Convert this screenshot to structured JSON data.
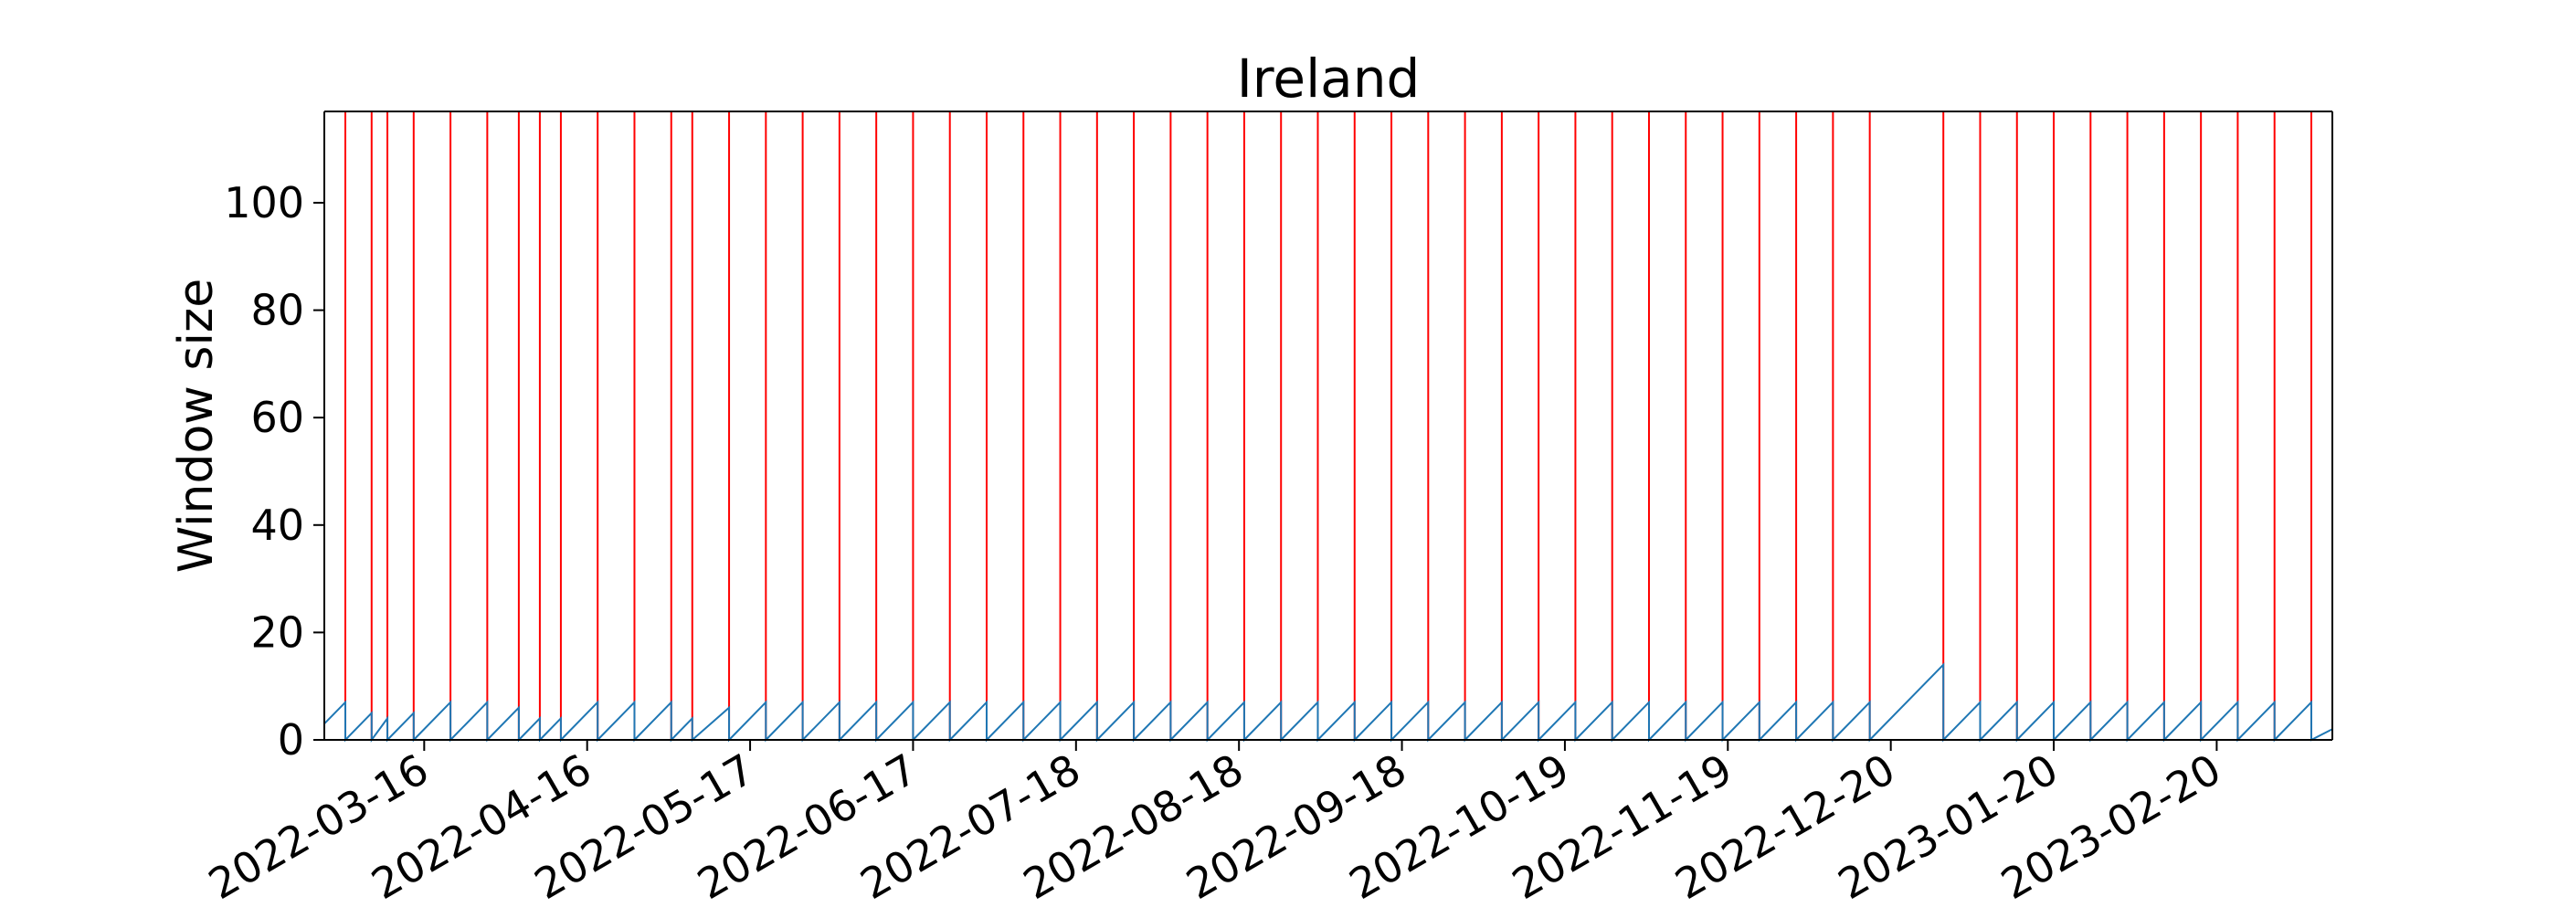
{
  "chart_data": {
    "type": "line",
    "title": "Ireland",
    "xlabel": "",
    "ylabel": "Window size",
    "x_axis_kind": "date",
    "xlim": [
      "2022-02-25",
      "2023-03-14"
    ],
    "ylim": [
      0,
      117
    ],
    "yticks": [
      0,
      20,
      40,
      60,
      80,
      100
    ],
    "xticks": [
      "2022-03-16",
      "2022-04-16",
      "2022-05-17",
      "2022-06-17",
      "2022-07-18",
      "2022-08-18",
      "2022-09-18",
      "2022-10-19",
      "2022-11-19",
      "2022-12-20",
      "2023-01-20",
      "2023-02-20"
    ],
    "grid": false,
    "legend": "none",
    "series": [
      {
        "color": "#1f77b4",
        "points": [
          [
            "2022-02-25",
            3
          ],
          [
            "2022-03-01",
            7
          ],
          [
            "2022-03-01",
            0
          ],
          [
            "2022-03-06",
            5
          ],
          [
            "2022-03-06",
            0
          ],
          [
            "2022-03-09",
            4
          ],
          [
            "2022-03-09",
            0
          ],
          [
            "2022-03-14",
            5
          ],
          [
            "2022-03-14",
            0
          ],
          [
            "2022-03-21",
            7
          ],
          [
            "2022-03-21",
            0
          ],
          [
            "2022-03-28",
            7
          ],
          [
            "2022-03-28",
            0
          ],
          [
            "2022-04-03",
            6
          ],
          [
            "2022-04-03",
            0
          ],
          [
            "2022-04-07",
            4
          ],
          [
            "2022-04-07",
            0
          ],
          [
            "2022-04-11",
            4
          ],
          [
            "2022-04-11",
            0
          ],
          [
            "2022-04-18",
            7
          ],
          [
            "2022-04-18",
            0
          ],
          [
            "2022-04-25",
            7
          ],
          [
            "2022-04-25",
            0
          ],
          [
            "2022-05-02",
            7
          ],
          [
            "2022-05-02",
            0
          ],
          [
            "2022-05-06",
            4
          ],
          [
            "2022-05-06",
            0
          ],
          [
            "2022-05-13",
            6
          ],
          [
            "2022-05-13",
            0
          ],
          [
            "2022-05-20",
            7
          ],
          [
            "2022-05-20",
            0
          ],
          [
            "2022-05-27",
            7
          ],
          [
            "2022-05-27",
            0
          ],
          [
            "2022-06-03",
            7
          ],
          [
            "2022-06-03",
            0
          ],
          [
            "2022-06-10",
            7
          ],
          [
            "2022-06-10",
            0
          ],
          [
            "2022-06-17",
            7
          ],
          [
            "2022-06-17",
            0
          ],
          [
            "2022-06-24",
            7
          ],
          [
            "2022-06-24",
            0
          ],
          [
            "2022-07-01",
            7
          ],
          [
            "2022-07-01",
            0
          ],
          [
            "2022-07-08",
            7
          ],
          [
            "2022-07-08",
            0
          ],
          [
            "2022-07-15",
            7
          ],
          [
            "2022-07-15",
            0
          ],
          [
            "2022-07-22",
            7
          ],
          [
            "2022-07-22",
            0
          ],
          [
            "2022-07-29",
            7
          ],
          [
            "2022-07-29",
            0
          ],
          [
            "2022-08-05",
            7
          ],
          [
            "2022-08-05",
            0
          ],
          [
            "2022-08-12",
            7
          ],
          [
            "2022-08-12",
            0
          ],
          [
            "2022-08-19",
            7
          ],
          [
            "2022-08-19",
            0
          ],
          [
            "2022-08-26",
            7
          ],
          [
            "2022-08-26",
            0
          ],
          [
            "2022-09-02",
            7
          ],
          [
            "2022-09-02",
            0
          ],
          [
            "2022-09-09",
            7
          ],
          [
            "2022-09-09",
            0
          ],
          [
            "2022-09-16",
            7
          ],
          [
            "2022-09-16",
            0
          ],
          [
            "2022-09-23",
            7
          ],
          [
            "2022-09-23",
            0
          ],
          [
            "2022-09-30",
            7
          ],
          [
            "2022-09-30",
            0
          ],
          [
            "2022-10-07",
            7
          ],
          [
            "2022-10-07",
            0
          ],
          [
            "2022-10-14",
            7
          ],
          [
            "2022-10-14",
            0
          ],
          [
            "2022-10-21",
            7
          ],
          [
            "2022-10-21",
            0
          ],
          [
            "2022-10-28",
            7
          ],
          [
            "2022-10-28",
            0
          ],
          [
            "2022-11-04",
            7
          ],
          [
            "2022-11-04",
            0
          ],
          [
            "2022-11-11",
            7
          ],
          [
            "2022-11-11",
            0
          ],
          [
            "2022-11-18",
            7
          ],
          [
            "2022-11-18",
            0
          ],
          [
            "2022-11-25",
            7
          ],
          [
            "2022-11-25",
            0
          ],
          [
            "2022-12-02",
            7
          ],
          [
            "2022-12-02",
            0
          ],
          [
            "2022-12-09",
            7
          ],
          [
            "2022-12-09",
            0
          ],
          [
            "2022-12-16",
            7
          ],
          [
            "2022-12-16",
            0
          ],
          [
            "2022-12-30",
            14
          ],
          [
            "2022-12-30",
            0
          ],
          [
            "2023-01-06",
            7
          ],
          [
            "2023-01-06",
            0
          ],
          [
            "2023-01-13",
            7
          ],
          [
            "2023-01-13",
            0
          ],
          [
            "2023-01-20",
            7
          ],
          [
            "2023-01-20",
            0
          ],
          [
            "2023-01-27",
            7
          ],
          [
            "2023-01-27",
            0
          ],
          [
            "2023-02-03",
            7
          ],
          [
            "2023-02-03",
            0
          ],
          [
            "2023-02-10",
            7
          ],
          [
            "2023-02-10",
            0
          ],
          [
            "2023-02-17",
            7
          ],
          [
            "2023-02-17",
            0
          ],
          [
            "2023-02-24",
            7
          ],
          [
            "2023-02-24",
            0
          ],
          [
            "2023-03-03",
            7
          ],
          [
            "2023-03-03",
            0
          ],
          [
            "2023-03-10",
            7
          ],
          [
            "2023-03-10",
            0
          ],
          [
            "2023-03-14",
            2
          ]
        ]
      }
    ],
    "vlines": {
      "color": "#ff0000",
      "dates": [
        "2022-03-01",
        "2022-03-06",
        "2022-03-09",
        "2022-03-14",
        "2022-03-21",
        "2022-03-28",
        "2022-04-03",
        "2022-04-07",
        "2022-04-11",
        "2022-04-18",
        "2022-04-25",
        "2022-05-02",
        "2022-05-06",
        "2022-05-13",
        "2022-05-20",
        "2022-05-27",
        "2022-06-03",
        "2022-06-10",
        "2022-06-17",
        "2022-06-24",
        "2022-07-01",
        "2022-07-08",
        "2022-07-15",
        "2022-07-22",
        "2022-07-29",
        "2022-08-05",
        "2022-08-12",
        "2022-08-19",
        "2022-08-26",
        "2022-09-02",
        "2022-09-09",
        "2022-09-16",
        "2022-09-23",
        "2022-09-30",
        "2022-10-07",
        "2022-10-14",
        "2022-10-21",
        "2022-10-28",
        "2022-11-04",
        "2022-11-11",
        "2022-11-18",
        "2022-11-25",
        "2022-12-02",
        "2022-12-09",
        "2022-12-16",
        "2022-12-30",
        "2023-01-06",
        "2023-01-13",
        "2023-01-20",
        "2023-01-27",
        "2023-02-03",
        "2023-02-10",
        "2023-02-17",
        "2023-02-24",
        "2023-03-03",
        "2023-03-10",
        "2023-03-14"
      ]
    }
  }
}
